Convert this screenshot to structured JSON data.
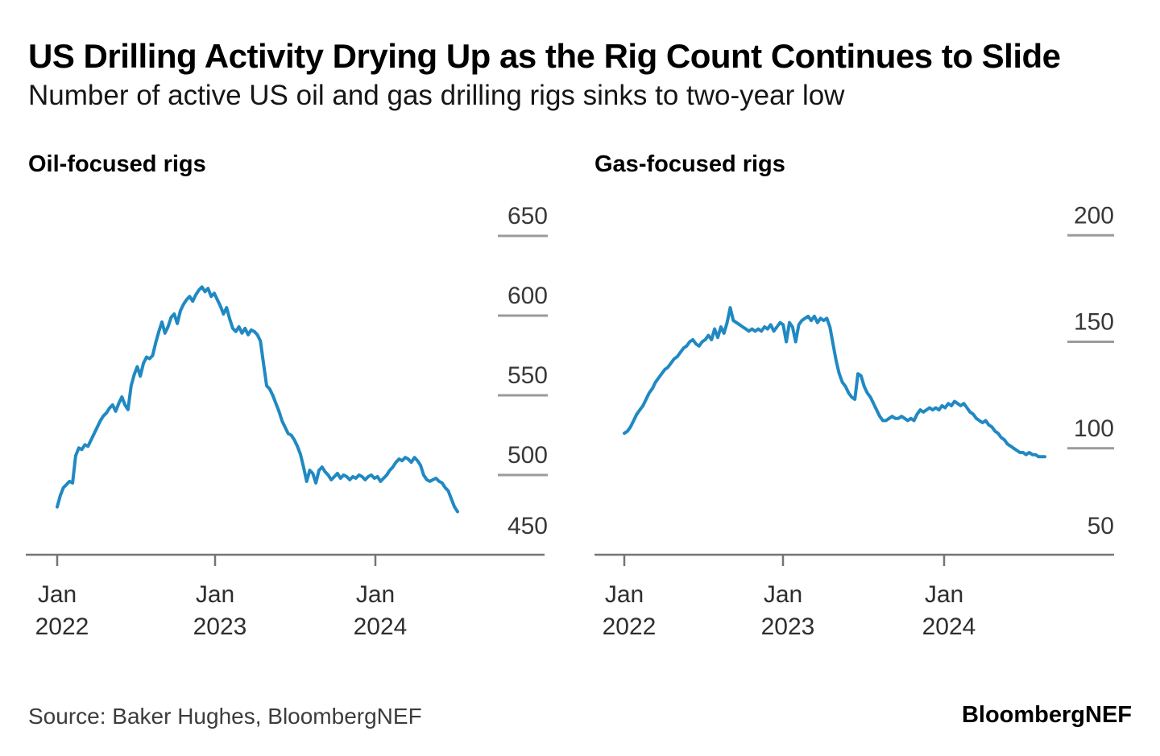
{
  "header": {
    "title": "US Drilling Activity Drying Up as the Rig Count Continues to Slide",
    "subtitle": "Number of active US oil and gas drilling rigs sinks to two-year low"
  },
  "footer": {
    "source": "Source: Baker Hughes, BloombergNEF",
    "brand": "BloombergNEF"
  },
  "colors": {
    "line": "#2089c2",
    "axis": "#757575",
    "tick_dash": "#9b9b9b",
    "axis_label": "#383838",
    "x_label": "#2e2e2e"
  },
  "chart_data": [
    {
      "type": "line",
      "title": "Oil-focused rigs",
      "xlabel": "",
      "ylabel": "",
      "legend": "none",
      "grid": "off",
      "ylim": [
        450,
        670
      ],
      "yticks": [
        650,
        600,
        550,
        500,
        450
      ],
      "xticks": [
        {
          "month": "Jan",
          "year": "2022"
        },
        {
          "month": "Jan",
          "year": "2023"
        },
        {
          "month": "Jan",
          "year": "2024"
        }
      ],
      "x_range": "Jan 2022 to Jul 2024, weekly",
      "values": [
        480,
        487,
        492,
        494,
        496,
        495,
        512,
        517,
        516,
        519,
        518,
        522,
        526,
        530,
        534,
        537,
        539,
        542,
        544,
        540,
        545,
        549,
        544,
        541,
        556,
        563,
        568,
        562,
        570,
        574,
        573,
        575,
        583,
        590,
        596,
        589,
        593,
        599,
        601,
        595,
        603,
        607,
        610,
        612,
        609,
        613,
        616,
        618,
        615,
        617,
        612,
        614,
        610,
        606,
        601,
        605,
        598,
        592,
        590,
        593,
        589,
        592,
        588,
        591,
        590,
        588,
        584,
        570,
        556,
        554,
        550,
        545,
        540,
        534,
        530,
        526,
        525,
        522,
        518,
        513,
        505,
        496,
        503,
        501,
        495,
        503,
        505,
        502,
        500,
        497,
        499,
        501,
        498,
        500,
        499,
        497,
        499,
        498,
        500,
        499,
        497,
        499,
        500,
        498,
        499,
        496,
        498,
        500,
        503,
        505,
        508,
        510,
        509,
        511,
        510,
        508,
        511,
        509,
        506,
        500,
        497,
        496,
        497,
        498,
        496,
        495,
        492,
        490,
        485,
        480,
        477
      ]
    },
    {
      "type": "line",
      "title": "Gas-focused rigs",
      "xlabel": "",
      "ylabel": "",
      "legend": "none",
      "grid": "off",
      "ylim": [
        50,
        210
      ],
      "yticks": [
        200,
        150,
        100,
        50
      ],
      "xticks": [
        {
          "month": "Jan",
          "year": "2022"
        },
        {
          "month": "Jan",
          "year": "2023"
        },
        {
          "month": "Jan",
          "year": "2024"
        }
      ],
      "x_range": "Jan 2022 to Aug 2024, weekly",
      "values": [
        107,
        108,
        110,
        113,
        116,
        118,
        120,
        123,
        126,
        128,
        131,
        133,
        135,
        137,
        138,
        140,
        142,
        143,
        145,
        147,
        148,
        150,
        151,
        149,
        148,
        150,
        151,
        153,
        151,
        156,
        152,
        157,
        154,
        159,
        166,
        160,
        159,
        158,
        157,
        156,
        155,
        156,
        155,
        156,
        155,
        157,
        156,
        158,
        155,
        157,
        159,
        158,
        150,
        159,
        157,
        150,
        158,
        160,
        161,
        162,
        160,
        162,
        159,
        161,
        160,
        161,
        157,
        149,
        141,
        135,
        131,
        129,
        126,
        124,
        123,
        135,
        134,
        129,
        126,
        124,
        121,
        118,
        115,
        113,
        113,
        114,
        115,
        114,
        114,
        115,
        114,
        113,
        114,
        113,
        116,
        118,
        117,
        118,
        119,
        118,
        119,
        118,
        120,
        119,
        121,
        120,
        122,
        121,
        120,
        121,
        119,
        117,
        116,
        114,
        113,
        112,
        113,
        111,
        110,
        108,
        107,
        105,
        104,
        102,
        101,
        100,
        99,
        98,
        98,
        97,
        98,
        97,
        97,
        96,
        96,
        96
      ]
    }
  ]
}
